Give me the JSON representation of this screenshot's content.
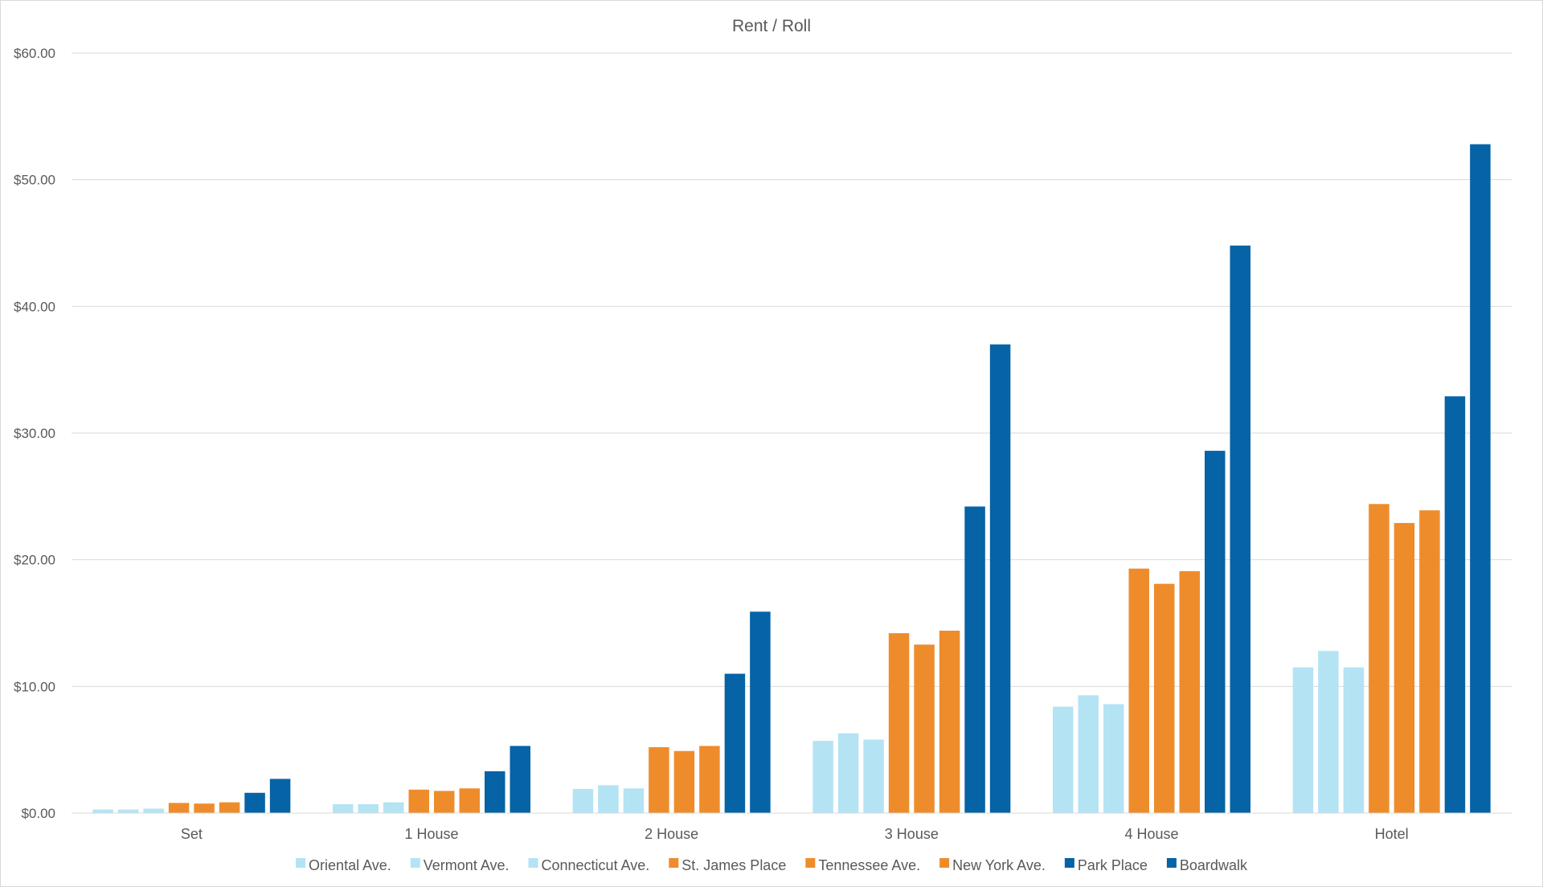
{
  "chart_data": {
    "type": "bar",
    "title": "Rent / Roll",
    "xlabel": "",
    "ylabel": "",
    "ylim": [
      0,
      60
    ],
    "yticks": [
      "$0.00",
      "$10.00",
      "$20.00",
      "$30.00",
      "$40.00",
      "$50.00",
      "$60.00"
    ],
    "ytick_values": [
      0,
      10,
      20,
      30,
      40,
      50,
      60
    ],
    "grid": true,
    "legend_position": "bottom",
    "categories": [
      "Set",
      "1 House",
      "2 House",
      "3 House",
      "4 House",
      "Hotel"
    ],
    "series": [
      {
        "name": "Oriental Ave.",
        "color": "#b4e3f4",
        "values": [
          0.28,
          0.7,
          1.9,
          5.7,
          8.4,
          11.5
        ]
      },
      {
        "name": "Vermont Ave.",
        "color": "#b4e3f4",
        "values": [
          0.28,
          0.7,
          2.2,
          6.3,
          9.3,
          12.8
        ]
      },
      {
        "name": "Connecticut Ave.",
        "color": "#b4e3f4",
        "values": [
          0.35,
          0.85,
          1.95,
          5.8,
          8.6,
          11.5
        ]
      },
      {
        "name": "St. James Place",
        "color": "#ee8c2c",
        "values": [
          0.8,
          1.85,
          5.2,
          14.2,
          19.3,
          24.4
        ]
      },
      {
        "name": "Tennessee Ave.",
        "color": "#ee8c2c",
        "values": [
          0.75,
          1.75,
          4.9,
          13.3,
          18.1,
          22.9
        ]
      },
      {
        "name": "New York Ave.",
        "color": "#ee8c2c",
        "values": [
          0.85,
          1.95,
          5.3,
          14.4,
          19.1,
          23.9
        ]
      },
      {
        "name": "Park Place",
        "color": "#0563a6",
        "values": [
          1.6,
          3.3,
          11.0,
          24.2,
          28.6,
          32.9
        ]
      },
      {
        "name": "Boardwalk",
        "color": "#0563a6",
        "values": [
          2.7,
          5.3,
          15.9,
          37.0,
          44.8,
          52.8
        ]
      }
    ]
  }
}
